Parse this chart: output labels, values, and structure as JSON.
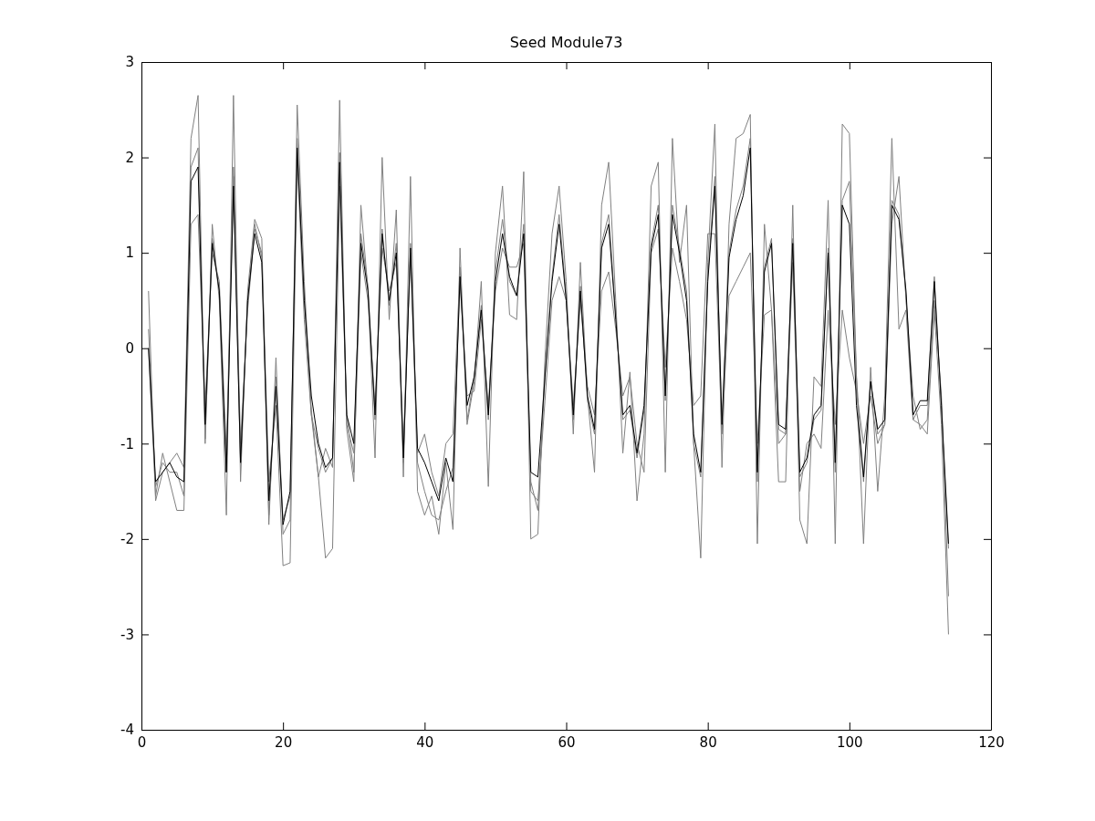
{
  "chart_data": {
    "type": "line",
    "title": "Seed Module73",
    "x": [
      1,
      2,
      3,
      4,
      5,
      6,
      7,
      8,
      9,
      10,
      11,
      12,
      13,
      14,
      15,
      16,
      17,
      18,
      19,
      20,
      21,
      22,
      23,
      24,
      25,
      26,
      27,
      28,
      29,
      30,
      31,
      32,
      33,
      34,
      35,
      36,
      37,
      38,
      39,
      40,
      41,
      42,
      43,
      44,
      45,
      46,
      47,
      48,
      49,
      50,
      51,
      52,
      53,
      54,
      55,
      56,
      57,
      58,
      59,
      60,
      61,
      62,
      63,
      64,
      65,
      66,
      67,
      68,
      69,
      70,
      71,
      72,
      73,
      74,
      75,
      76,
      77,
      78,
      79,
      80,
      81,
      82,
      83,
      84,
      85,
      86,
      87,
      88,
      89,
      90,
      91,
      92,
      93,
      94,
      95,
      96,
      97,
      98,
      99,
      100,
      101,
      102,
      103,
      104,
      105,
      106,
      107,
      108,
      109,
      110,
      111,
      112,
      113,
      114
    ],
    "series": [
      {
        "color": "#808080",
        "values": [
          0.6,
          -1.6,
          -1.3,
          -1.2,
          -1.1,
          -1.25,
          2.2,
          2.65,
          -1.0,
          1.3,
          0.5,
          -1.75,
          2.65,
          -1.4,
          0.6,
          1.35,
          1.15,
          -1.85,
          -0.1,
          -1.95,
          -1.8,
          2.55,
          0.7,
          -0.65,
          -1.35,
          -1.05,
          -1.25,
          2.6,
          -0.85,
          -1.4,
          1.5,
          0.6,
          -1.15,
          2.0,
          0.3,
          1.45,
          -1.35,
          1.8,
          -1.5,
          -1.75,
          -1.55,
          -1.95,
          -1.2,
          -1.9,
          1.05,
          -0.8,
          -0.35,
          0.7,
          -1.45,
          1.0,
          1.7,
          0.35,
          0.3,
          1.85,
          -2.0,
          -1.95,
          -0.1,
          1.2,
          1.7,
          0.7,
          -0.9,
          0.9,
          -0.5,
          -1.3,
          1.5,
          1.95,
          0.5,
          -1.1,
          -0.25,
          -1.6,
          -0.9,
          1.7,
          1.95,
          -1.3,
          2.2,
          0.9,
          1.5,
          -1.0,
          -2.2,
          0.9,
          2.35,
          -1.25,
          1.3,
          2.2,
          2.25,
          2.45,
          -2.05,
          1.3,
          0.4,
          -1.4,
          -1.4,
          1.5,
          -1.8,
          -2.05,
          -0.3,
          -0.4,
          1.55,
          -2.05,
          2.35,
          2.25,
          -0.3,
          -2.05,
          -0.2,
          -1.5,
          -0.5,
          2.2,
          0.2,
          0.4,
          -0.75,
          -0.8,
          -0.9,
          0.4,
          -0.8,
          -3.0
        ]
      },
      {
        "color": "#808080",
        "values": [
          0.0,
          -1.55,
          -1.1,
          -1.4,
          -1.7,
          -1.7,
          1.3,
          1.4,
          -0.6,
          1.0,
          0.7,
          -1.1,
          1.9,
          -1.0,
          0.4,
          1.25,
          1.0,
          -1.4,
          -0.6,
          -2.28,
          -2.25,
          2.0,
          0.3,
          -0.7,
          -1.35,
          -2.2,
          -2.1,
          1.7,
          -0.7,
          -1.3,
          1.0,
          0.5,
          -0.6,
          1.05,
          0.6,
          0.9,
          -1.0,
          1.0,
          -1.2,
          -1.5,
          -1.75,
          -1.8,
          -1.5,
          -1.25,
          0.7,
          -0.5,
          -0.45,
          0.3,
          -0.6,
          0.6,
          1.05,
          0.85,
          0.85,
          1.1,
          -1.5,
          -1.6,
          -0.55,
          0.5,
          0.75,
          0.5,
          -0.6,
          0.5,
          -0.4,
          -0.7,
          0.6,
          0.8,
          0.2,
          -0.5,
          -0.3,
          -1.0,
          -1.3,
          1.0,
          1.25,
          -0.2,
          1.05,
          0.7,
          0.3,
          -0.6,
          -0.5,
          1.2,
          1.2,
          -0.9,
          0.55,
          0.7,
          0.85,
          1.0,
          -1.0,
          0.35,
          0.4,
          -1.0,
          -0.9,
          0.9,
          -1.5,
          -1.0,
          -0.9,
          -1.05,
          0.4,
          -0.8,
          0.4,
          -0.1,
          -0.45,
          -1.0,
          -0.5,
          -1.0,
          -0.8,
          1.3,
          1.8,
          0.5,
          -0.5,
          -0.85,
          -0.75,
          0.5,
          -0.5,
          -2.6
        ]
      },
      {
        "color": "#808080",
        "values": [
          0.2,
          -1.45,
          -1.2,
          -1.3,
          -1.3,
          -1.55,
          1.9,
          2.1,
          -0.95,
          1.15,
          0.6,
          -1.3,
          1.8,
          -1.2,
          0.5,
          1.3,
          0.95,
          -1.75,
          -0.3,
          -1.8,
          -1.55,
          2.2,
          0.55,
          -0.7,
          -1.05,
          -1.3,
          -1.15,
          2.05,
          -0.8,
          -1.1,
          1.2,
          0.65,
          -0.75,
          1.25,
          0.45,
          1.1,
          -1.2,
          1.1,
          -1.1,
          -0.9,
          -1.3,
          -1.55,
          -1.0,
          -0.9,
          0.85,
          -0.75,
          -0.3,
          0.45,
          -0.75,
          0.8,
          1.35,
          0.7,
          0.55,
          1.3,
          -1.4,
          -1.7,
          -0.3,
          0.75,
          1.4,
          0.55,
          -0.75,
          0.65,
          -0.55,
          -0.9,
          1.1,
          1.4,
          0.35,
          -0.75,
          -0.65,
          -1.15,
          -0.65,
          1.1,
          1.5,
          -0.55,
          1.5,
          1.05,
          0.6,
          -1.0,
          -1.35,
          0.75,
          1.8,
          -0.85,
          1.0,
          1.45,
          1.7,
          2.2,
          -1.4,
          0.85,
          1.15,
          -0.85,
          -0.9,
          1.15,
          -1.35,
          -1.2,
          -0.75,
          -0.65,
          1.05,
          -1.3,
          1.55,
          1.75,
          -0.3,
          -1.4,
          -0.35,
          -0.9,
          -0.8,
          1.55,
          1.4,
          0.55,
          -0.75,
          -0.6,
          -0.6,
          0.75,
          -0.65,
          -2.1
        ]
      },
      {
        "color": "#000000",
        "values": [
          0.0,
          -1.4,
          -1.3,
          -1.2,
          -1.35,
          -1.4,
          1.75,
          1.9,
          -0.8,
          1.1,
          0.6,
          -1.3,
          1.7,
          -1.2,
          0.5,
          1.2,
          0.9,
          -1.6,
          -0.4,
          -1.85,
          -1.5,
          2.1,
          0.5,
          -0.5,
          -1.0,
          -1.25,
          -1.15,
          1.95,
          -0.7,
          -1.0,
          1.1,
          0.6,
          -0.7,
          1.2,
          0.5,
          1.0,
          -1.15,
          1.05,
          -1.05,
          -1.2,
          -1.4,
          -1.6,
          -1.15,
          -1.4,
          0.75,
          -0.6,
          -0.3,
          0.4,
          -0.7,
          0.7,
          1.2,
          0.75,
          0.55,
          1.2,
          -1.3,
          -1.35,
          -0.3,
          0.7,
          1.3,
          0.5,
          -0.7,
          0.6,
          -0.5,
          -0.85,
          1.05,
          1.3,
          0.3,
          -0.7,
          -0.6,
          -1.1,
          -0.6,
          1.05,
          1.4,
          -0.5,
          1.4,
          1.0,
          0.5,
          -0.9,
          -1.3,
          0.7,
          1.7,
          -0.8,
          0.95,
          1.35,
          1.6,
          2.1,
          -1.3,
          0.8,
          1.1,
          -0.8,
          -0.85,
          1.1,
          -1.3,
          -1.15,
          -0.7,
          -0.6,
          1.0,
          -1.2,
          1.5,
          1.3,
          -0.6,
          -1.35,
          -0.35,
          -0.85,
          -0.75,
          1.5,
          1.35,
          0.6,
          -0.7,
          -0.55,
          -0.55,
          0.7,
          -0.6,
          -2.05
        ]
      }
    ],
    "xlim": [
      0,
      120
    ],
    "xticks": [
      0,
      20,
      40,
      60,
      80,
      100,
      120
    ],
    "ylim": [
      -4,
      3
    ],
    "yticks": [
      -4,
      -3,
      -2,
      -1,
      0,
      1,
      2,
      3
    ],
    "grid": false,
    "marker": "none",
    "line_style": "solid"
  }
}
